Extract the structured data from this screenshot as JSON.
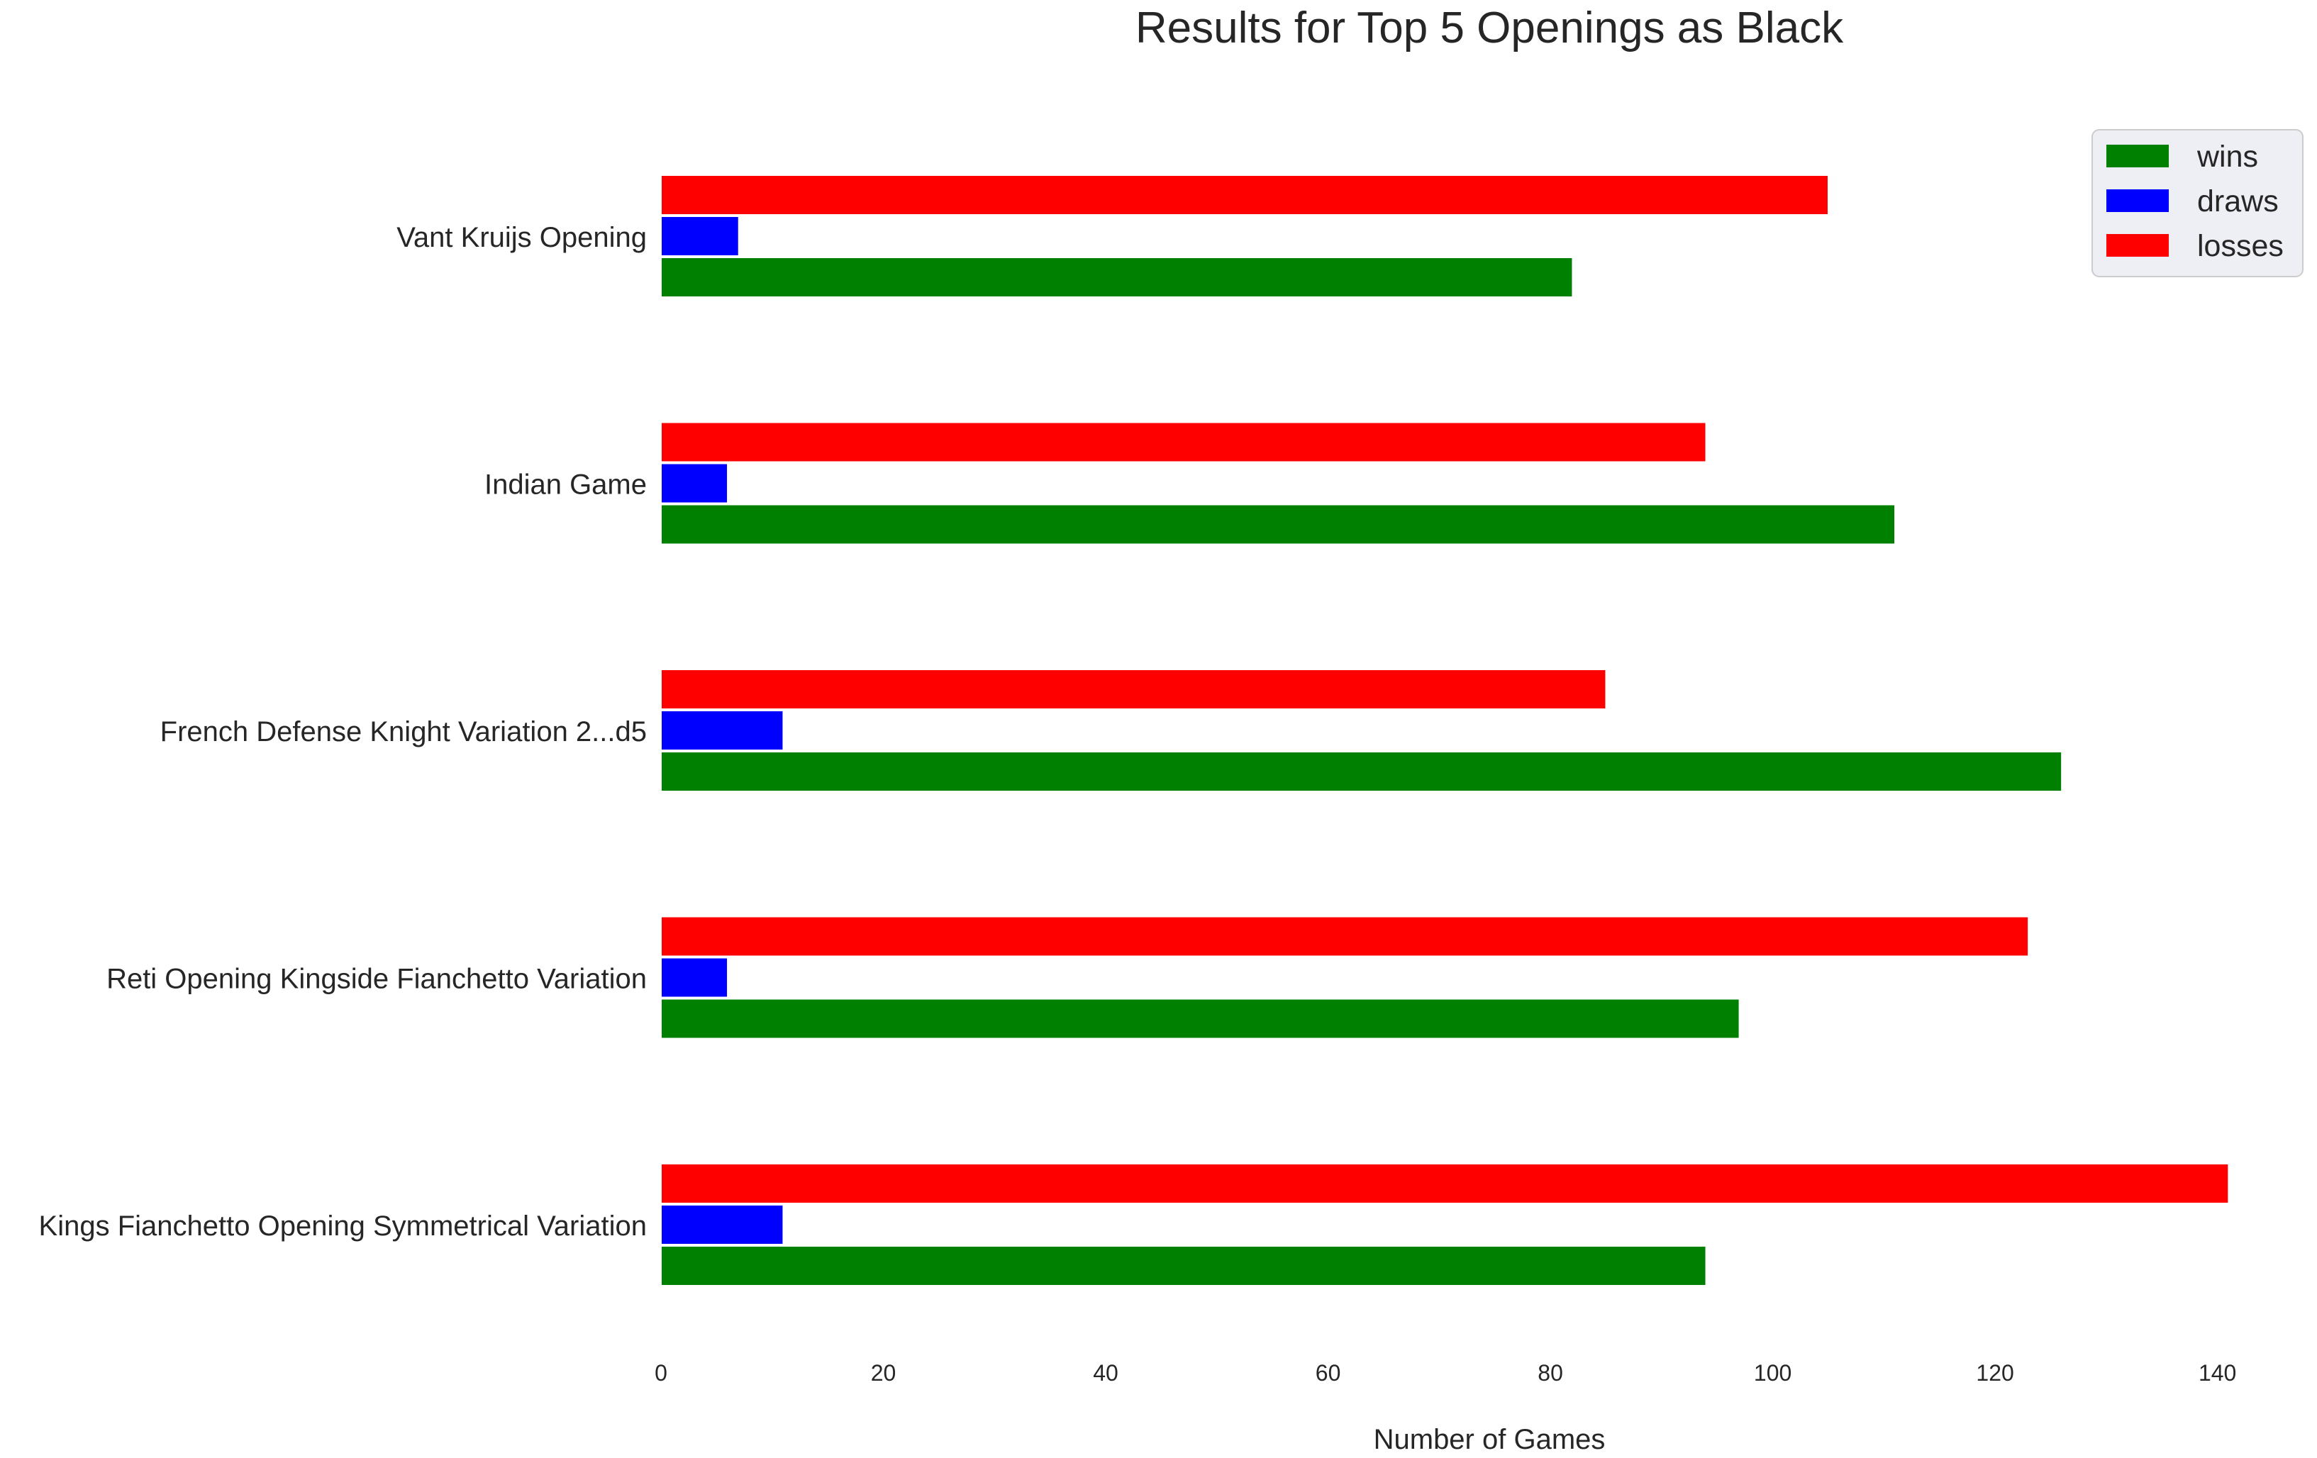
{
  "chart_data": {
    "type": "bar",
    "orientation": "horizontal",
    "title": "Results for Top 5 Openings as Black",
    "xlabel": "Number of Games",
    "ylabel": "",
    "xlim": [
      0,
      142
    ],
    "xticks": [
      0,
      20,
      40,
      60,
      80,
      100,
      120,
      140
    ],
    "grid": false,
    "legend_position": "top-right",
    "categories": [
      "Vant Kruijs Opening",
      "Indian Game",
      "French Defense Knight Variation 2...d5",
      "Reti Opening Kingside Fianchetto Variation",
      "Kings Fianchetto Opening Symmetrical Variation"
    ],
    "series": [
      {
        "name": "wins",
        "color": "#008000",
        "values": [
          82,
          111,
          126,
          97,
          94
        ]
      },
      {
        "name": "draws",
        "color": "#0000ff",
        "values": [
          7,
          6,
          11,
          6,
          11
        ]
      },
      {
        "name": "losses",
        "color": "#ff0000",
        "values": [
          105,
          94,
          85,
          123,
          141
        ]
      }
    ]
  }
}
